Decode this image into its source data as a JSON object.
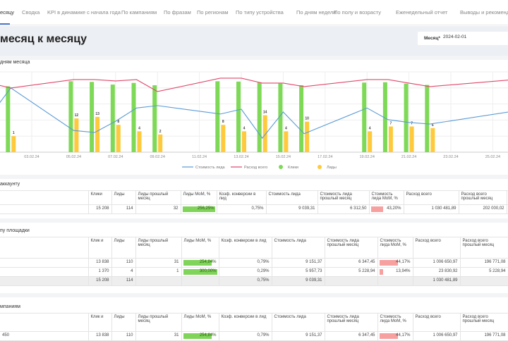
{
  "tabs": [
    "есяцу",
    "Сводка",
    "KPI в динамике с начала года",
    "По кампаниям",
    "По фразам",
    "По регионам",
    "По типу устройства",
    "По дням недели",
    "По полу и возрасту",
    "Еженедельный отчет",
    "Выводы и рекомендации"
  ],
  "header": {
    "title": "месяц к месяцу",
    "month_label": "Месяц*",
    "month_value": "2024-02-01"
  },
  "chart_section": {
    "title": "дням месяца"
  },
  "chart_data": {
    "type": "bar+line",
    "x_labels": [
      "03.02.24",
      "05.02.24",
      "07.02.24",
      "09.02.24",
      "11.02.24",
      "13.02.24",
      "15.02.24",
      "17.02.24",
      "19.02.24",
      "21.02.24",
      "23.02.24",
      "25.02.24"
    ],
    "days": [
      2,
      5,
      6,
      7,
      8,
      9,
      12,
      13,
      14,
      15,
      16,
      19,
      20,
      21,
      22
    ],
    "series": [
      {
        "name": "Клики",
        "type": "bar",
        "color": "#7ed957",
        "values": [
          985,
          1060,
          1050,
          1010,
          1035,
          1000,
          1060,
          1055,
          1040,
          1025,
          1000,
          1040,
          1045,
          1025,
          1005
        ]
      },
      {
        "name": "Лиды",
        "type": "bar",
        "color": "#ffc93c",
        "values": [
          1,
          12,
          13,
          8,
          4,
          2,
          8,
          4,
          14,
          4,
          10,
          4,
          7,
          7,
          6
        ]
      },
      {
        "name": "Стоимость лида",
        "type": "line",
        "color": "#5b9bd5",
        "days": [
          1,
          2,
          5,
          6,
          7,
          8,
          9,
          12,
          13,
          14,
          15,
          16,
          19,
          20,
          21,
          22,
          26
        ],
        "values": [
          9000,
          16000,
          5400,
          4900,
          7700,
          11000,
          11600,
          9500,
          10700,
          3500,
          10000,
          4600,
          11000,
          8100,
          7400,
          7000,
          10200
        ]
      },
      {
        "name": "Расход всего",
        "type": "line",
        "color": "#e0476b",
        "days": [
          1,
          2,
          5,
          6,
          7,
          8,
          9,
          12,
          13,
          14,
          15,
          16,
          19,
          20,
          21,
          22,
          26
        ],
        "values": [
          68800,
          63900,
          72300,
          72300,
          70900,
          72300,
          60400,
          73700,
          73700,
          68800,
          68800,
          65300,
          72300,
          72300,
          68800,
          65300,
          72300
        ]
      }
    ],
    "x_range": [
      1.5,
      26.2
    ],
    "clicks_axis": [
      0,
      1200
    ],
    "leads_axis": [
      -9,
      41
    ],
    "cost_axis": [
      0,
      20000
    ],
    "spend_axis": [
      0,
      80000
    ],
    "legend": [
      "Стоимость лида",
      "Расход всего",
      "Клики",
      "Лиды"
    ],
    "legend_position": "bottom"
  },
  "tables": [
    {
      "title": "аккаунту",
      "headers": [
        "",
        "Клики",
        "Лиды",
        "Лиды прошлый месяц",
        "Лиды MoM, %",
        "Коэф. конверсии в лид",
        "Стоимость лида",
        "Стоимость лида прошлый месяц",
        "Стоимость лида MoM, %",
        "Расход всего",
        "Расход всего прошлый месяц"
      ],
      "rows": [
        {
          "cells": [
            "",
            "15 208",
            "114",
            "32",
            "256,25%",
            "0,75%",
            "9 039,31",
            "6 312,50",
            "43,20%",
            "1 030 481,89",
            "202 000,02"
          ],
          "leads_mom": 1.0,
          "cost_mom": 0.7
        }
      ]
    },
    {
      "title": "пу площадки",
      "headers": [
        "",
        "Клик и",
        "Лиды",
        "Лиды прошлый месяц",
        "Лиды MoM, %",
        "Коэф. конверсии в лид",
        "Стоимость лида",
        "Стоимость лида прошлый месяц",
        "Стоимость лида MoM, %",
        "Расход всего",
        "Расход всего прошлый месяц"
      ],
      "rows": [
        {
          "cells": [
            "",
            "13 838",
            "110",
            "31",
            "254,84%",
            "0,79%",
            "9 151,37",
            "6 347,45",
            "44,17%",
            "1 006 650,97",
            "196 771,08"
          ],
          "leads_mom": 0.85,
          "cost_mom": 0.95
        },
        {
          "cells": [
            "",
            "1 370",
            "4",
            "1",
            "300,00%",
            "0,29%",
            "5 957,73",
            "5 228,94",
            "13,94%",
            "23 830,92",
            "5 228,94"
          ],
          "leads_mom": 1.0,
          "cost_mom": 0.3
        }
      ],
      "total": [
        "",
        "15 208",
        "114",
        "",
        "",
        "0,75%",
        "9 039,31",
        "",
        "",
        "1 030 481,89",
        ""
      ]
    },
    {
      "title": "мпаниям",
      "headers": [
        "",
        "Клик и",
        "Лиды",
        "Лиды прошлый месяц",
        "Лиды MoM, %",
        "Коэф. конверсии в лид",
        "Стоимость лида",
        "Стоимость лида прошлый месяц",
        "Стоимость лида MoM, %",
        "Расход всего",
        "Расход всего прошлый месяц"
      ],
      "rows": [
        {
          "cells": [
            "450",
            "13 838",
            "110",
            "31",
            "254,84%",
            "0,79%",
            "9 151,37",
            "6 347,45",
            "44,17%",
            "1 006 650,97",
            "196 771,08"
          ],
          "leads_mom": 0.85,
          "cost_mom": 0.95
        }
      ]
    }
  ]
}
